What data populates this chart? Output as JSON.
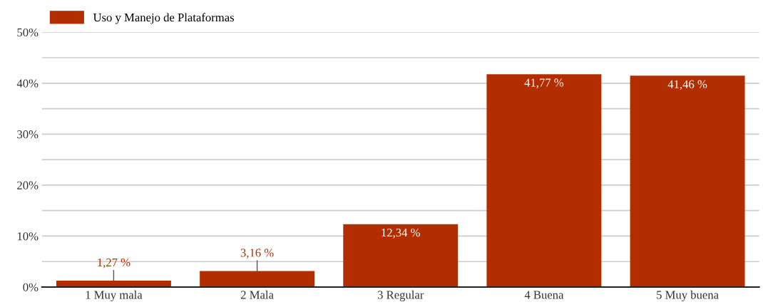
{
  "chart_data": {
    "type": "bar",
    "categories": [
      "1 Muy mala",
      "2 Mala",
      "3 Regular",
      "4 Buena",
      "5 Muy buena"
    ],
    "series": [
      {
        "name": "Uso y Manejo de Plataformas",
        "color": "#b22e00",
        "values": [
          1.27,
          3.16,
          12.34,
          41.77,
          41.46
        ],
        "value_labels": [
          "1,27 %",
          "3,16 %",
          "12,34 %",
          "41,77 %",
          "41,46 %"
        ]
      }
    ],
    "ylim": [
      0,
      50
    ],
    "yticks": [
      {
        "value": 0,
        "label": "0%"
      },
      {
        "value": 5,
        "label": null
      },
      {
        "value": 10,
        "label": "10%"
      },
      {
        "value": 15,
        "label": null
      },
      {
        "value": 20,
        "label": "20%"
      },
      {
        "value": 25,
        "label": null
      },
      {
        "value": 30,
        "label": "30%"
      },
      {
        "value": 35,
        "label": null
      },
      {
        "value": 40,
        "label": "40%"
      },
      {
        "value": 45,
        "label": null
      },
      {
        "value": 50,
        "label": "50%"
      }
    ],
    "grid": "y",
    "legend": "top left"
  }
}
